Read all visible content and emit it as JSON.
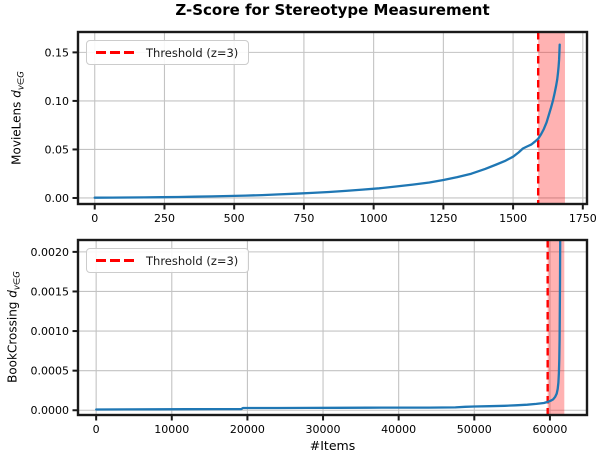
{
  "figure": {
    "title": "Z-Score for Stereotype Measurement",
    "xlabel": "#Items"
  },
  "chart_data": [
    {
      "type": "line",
      "title": "Z-Score for Stereotype Measurement",
      "dataset": "MovieLens",
      "ylabel": {
        "prefix": "MovieLens ",
        "variable": "d",
        "subscript": "v∈G"
      },
      "legend": {
        "label": "Threshold (z=3)",
        "position": "upper left"
      },
      "grid": true,
      "xlim": [
        -60,
        1765
      ],
      "ylim": [
        -0.0062,
        0.171
      ],
      "xtick_values": [
        0,
        250,
        500,
        750,
        1000,
        1250,
        1500,
        1750
      ],
      "xtick_labels": [
        "0",
        "250",
        "500",
        "750",
        "1000",
        "1250",
        "1500",
        "1750"
      ],
      "ytick_values": [
        0,
        0.05,
        0.1,
        0.15
      ],
      "ytick_labels": [
        "0.00",
        "0.05",
        "0.10",
        "0.15"
      ],
      "threshold_x": 1590,
      "band_x": [
        1590,
        1686
      ],
      "colors": {
        "series": "#1f77b4",
        "threshold": "#ff0000",
        "band": "#ff0000",
        "grid": "#c3c3c3",
        "spine": "#1a1a1a"
      },
      "band_opacity": 0.3,
      "series": [
        [
          0,
          0.0003
        ],
        [
          60,
          0.0004
        ],
        [
          120,
          0.0005
        ],
        [
          180,
          0.0006
        ],
        [
          240,
          0.0008
        ],
        [
          300,
          0.001
        ],
        [
          360,
          0.0013
        ],
        [
          420,
          0.0016
        ],
        [
          480,
          0.002
        ],
        [
          540,
          0.0025
        ],
        [
          600,
          0.003
        ],
        [
          660,
          0.0037
        ],
        [
          720,
          0.0044
        ],
        [
          780,
          0.0052
        ],
        [
          840,
          0.0062
        ],
        [
          900,
          0.0073
        ],
        [
          960,
          0.0086
        ],
        [
          1020,
          0.01
        ],
        [
          1080,
          0.0118
        ],
        [
          1140,
          0.0138
        ],
        [
          1200,
          0.016
        ],
        [
          1250,
          0.0185
        ],
        [
          1300,
          0.0215
        ],
        [
          1350,
          0.025
        ],
        [
          1400,
          0.03
        ],
        [
          1440,
          0.0345
        ],
        [
          1470,
          0.038
        ],
        [
          1500,
          0.0425
        ],
        [
          1520,
          0.047
        ],
        [
          1535,
          0.051
        ],
        [
          1550,
          0.053
        ],
        [
          1565,
          0.055
        ],
        [
          1578,
          0.058
        ],
        [
          1590,
          0.061
        ],
        [
          1600,
          0.0655
        ],
        [
          1610,
          0.071
        ],
        [
          1620,
          0.078
        ],
        [
          1628,
          0.0855
        ],
        [
          1636,
          0.093
        ],
        [
          1643,
          0.1005
        ],
        [
          1649,
          0.108
        ],
        [
          1654,
          0.115
        ],
        [
          1658,
          0.122
        ],
        [
          1661,
          0.129
        ],
        [
          1663,
          0.1355
        ],
        [
          1665,
          0.1425
        ],
        [
          1666,
          0.15
        ],
        [
          1667,
          0.158
        ]
      ]
    },
    {
      "type": "line",
      "dataset": "BookCrossing",
      "xlabel": "#Items",
      "ylabel": {
        "prefix": "BookCrossing ",
        "variable": "d",
        "subscript": "v∈G"
      },
      "legend": {
        "label": "Threshold (z=3)",
        "position": "upper left"
      },
      "grid": true,
      "xlim": [
        -2400,
        64900
      ],
      "ylim": [
        -6e-05,
        0.00215
      ],
      "xtick_values": [
        0,
        10000,
        20000,
        30000,
        40000,
        50000,
        60000
      ],
      "xtick_labels": [
        "0",
        "10000",
        "20000",
        "30000",
        "40000",
        "50000",
        "60000"
      ],
      "ytick_values": [
        0,
        0.0005,
        0.001,
        0.0015,
        0.002
      ],
      "ytick_labels": [
        "0.0000",
        "0.0005",
        "0.0010",
        "0.0015",
        "0.0020"
      ],
      "threshold_x": 59700,
      "band_x": [
        59700,
        61900
      ],
      "colors": {
        "series": "#1f77b4",
        "threshold": "#ff0000",
        "band": "#ff0000",
        "grid": "#c3c3c3",
        "spine": "#1a1a1a"
      },
      "band_opacity": 0.3,
      "series": [
        [
          0,
          1e-05
        ],
        [
          4000,
          1.1e-05
        ],
        [
          8000,
          1.2e-05
        ],
        [
          12000,
          1.3e-05
        ],
        [
          16000,
          1.4e-05
        ],
        [
          19200,
          1.5e-05
        ],
        [
          19400,
          2.8e-05
        ],
        [
          24000,
          2.9e-05
        ],
        [
          28000,
          3e-05
        ],
        [
          32000,
          3.1e-05
        ],
        [
          36000,
          3.2e-05
        ],
        [
          40000,
          3.3e-05
        ],
        [
          44000,
          3.4e-05
        ],
        [
          47500,
          3.6e-05
        ],
        [
          48800,
          4.4e-05
        ],
        [
          50000,
          4.7e-05
        ],
        [
          52000,
          5.1e-05
        ],
        [
          54000,
          5.6e-05
        ],
        [
          55500,
          6.2e-05
        ],
        [
          57000,
          7e-05
        ],
        [
          58200,
          8e-05
        ],
        [
          59200,
          9.2e-05
        ],
        [
          59700,
          0.000105
        ],
        [
          60100,
          0.00012
        ],
        [
          60450,
          0.00014
        ],
        [
          60700,
          0.00017
        ],
        [
          60900,
          0.00021
        ],
        [
          61030,
          0.00027
        ],
        [
          61120,
          0.00035
        ],
        [
          61190,
          0.00047
        ],
        [
          61240,
          0.00065
        ],
        [
          61280,
          0.0009
        ],
        [
          61310,
          0.00125
        ],
        [
          61330,
          0.0016
        ],
        [
          61345,
          0.0019
        ],
        [
          61355,
          0.00215
        ]
      ]
    }
  ]
}
